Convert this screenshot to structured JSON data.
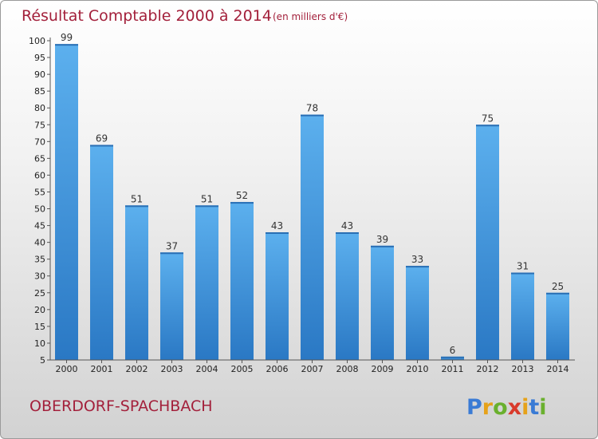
{
  "chart_data": {
    "type": "bar",
    "title": "Résultat Comptable 2000 à 2014",
    "subtitle": "(en milliers d'€)",
    "categories": [
      "2000",
      "2001",
      "2002",
      "2003",
      "2004",
      "2005",
      "2006",
      "2007",
      "2008",
      "2009",
      "2010",
      "2011",
      "2012",
      "2013",
      "2014"
    ],
    "values": [
      99,
      69,
      51,
      37,
      51,
      52,
      43,
      78,
      43,
      39,
      33,
      6,
      75,
      31,
      25
    ],
    "ylim": [
      5,
      100
    ],
    "yticks": [
      5,
      10,
      15,
      20,
      25,
      30,
      35,
      40,
      45,
      50,
      55,
      60,
      65,
      70,
      75,
      80,
      85,
      90,
      95,
      100
    ],
    "xlabel": "",
    "ylabel": "",
    "grid": false,
    "bar_color": "#3a8fd8"
  },
  "footer": {
    "commune": "OBERDORF-SPACHBACH",
    "brand_letters": [
      "P",
      "r",
      "o",
      "x",
      "i",
      "t",
      "i"
    ],
    "brand_colors": [
      "#3a7bd5",
      "#e6a21a",
      "#6ab02e",
      "#d93a2b",
      "#e6a21a",
      "#3a7bd5",
      "#6ab02e"
    ]
  }
}
